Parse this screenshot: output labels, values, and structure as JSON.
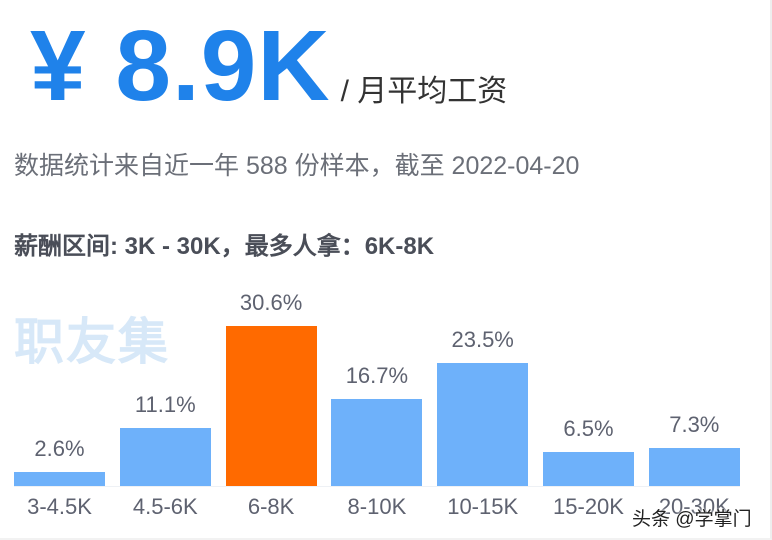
{
  "header": {
    "average_salary": "¥ 8.9K",
    "unit_label": "/ 月平均工资"
  },
  "summary": {
    "source_text": "数据统计来自近一年 588 份样本，截至 2022-04-20",
    "range_text": "薪酬区间: 3K - 30K，最多人拿：6K-8K"
  },
  "watermark": {
    "logo_text": "职友集",
    "credit_text": "头条 @学掌门"
  },
  "colors": {
    "accent": "#1f82ea",
    "bar": "#6eb1fa",
    "highlight": "#ff6a00"
  },
  "chart_data": {
    "type": "bar",
    "title": "",
    "xlabel": "",
    "ylabel": "",
    "categories": [
      "3-4.5K",
      "4.5-6K",
      "6-8K",
      "8-10K",
      "10-15K",
      "15-20K",
      "20-30K"
    ],
    "values": [
      2.6,
      11.1,
      30.6,
      16.7,
      23.5,
      6.5,
      7.3
    ],
    "value_labels": [
      "2.6%",
      "11.1%",
      "30.6%",
      "16.7%",
      "23.5%",
      "6.5%",
      "7.3%"
    ],
    "unit": "%",
    "highlight_index": 2,
    "grid": false,
    "legend": "none",
    "ylim": [
      0,
      32
    ]
  }
}
